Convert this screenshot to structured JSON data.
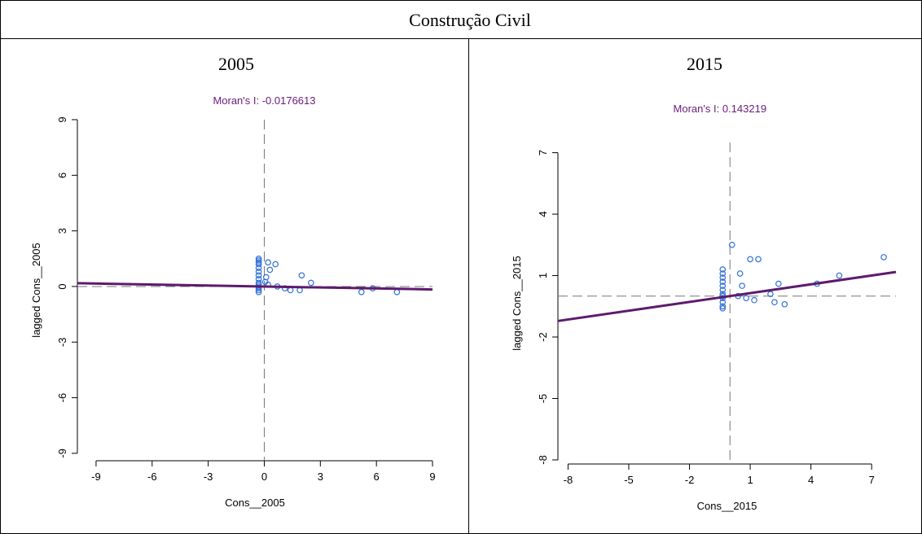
{
  "title": "Construção Civil",
  "chart_data": [
    {
      "type": "scatter",
      "heading": "2005",
      "title": "Moran's I: -0.0176613",
      "xlabel": "Cons__2005",
      "ylabel": "lagged Cons__2005",
      "xlim": [
        -10,
        9
      ],
      "ylim": [
        -9.4,
        9
      ],
      "xticks": [
        -9,
        -6,
        -3,
        0,
        3,
        6,
        9
      ],
      "yticks": [
        -9,
        -6,
        -3,
        0,
        3,
        6,
        9
      ],
      "mean_x": 0,
      "mean_y": 0,
      "regression_slope": -0.0176613,
      "color": "#2f6fd6",
      "line_color": "#5e1a6e",
      "x": [
        -0.3,
        -0.3,
        -0.3,
        -0.3,
        -0.3,
        -0.3,
        -0.3,
        -0.3,
        -0.3,
        -0.3,
        -0.3,
        -0.3,
        -0.3,
        -0.3,
        0.2,
        0.6,
        0.1,
        0.2,
        0.7,
        1.1,
        1.4,
        2,
        1.9,
        2.5,
        5.2,
        5.8,
        7.1,
        0.3,
        0.05
      ],
      "values": [
        1.5,
        1.4,
        1.3,
        1.2,
        1.0,
        0.8,
        0.6,
        0.4,
        0.2,
        0.1,
        0,
        -0.1,
        -0.2,
        -0.3,
        1.3,
        1.2,
        0.5,
        0.1,
        0,
        -0.1,
        -0.2,
        0.6,
        -0.2,
        0.2,
        -0.3,
        -0.1,
        -0.3,
        0.9,
        0.25
      ]
    },
    {
      "type": "scatter",
      "heading": "2015",
      "title": "Moran's I: 0.143219",
      "xlabel": "Cons__2015",
      "ylabel": "lagged Cons__2015",
      "xlim": [
        -8.5,
        8.2
      ],
      "ylim": [
        -8.2,
        7.5
      ],
      "xticks": [
        -8,
        -5,
        -2,
        1,
        4,
        7
      ],
      "yticks": [
        -8,
        -5,
        -2,
        1,
        4,
        7
      ],
      "mean_x": 0,
      "mean_y": 0,
      "regression_slope": 0.143219,
      "color": "#2f6fd6",
      "line_color": "#5e1a6e",
      "x": [
        -0.36,
        -0.36,
        -0.36,
        -0.36,
        -0.36,
        -0.36,
        -0.36,
        -0.36,
        -0.36,
        -0.36,
        -0.36,
        -0.36,
        0.1,
        0.5,
        0.6,
        1,
        1.4,
        2.4,
        0.8,
        1.2,
        2,
        2.2,
        2.7,
        4.3,
        5.4,
        7.6,
        0.4
      ],
      "values": [
        1.3,
        1.1,
        0.9,
        0.7,
        0.5,
        0.3,
        0.1,
        0,
        -0.1,
        -0.3,
        -0.5,
        -0.6,
        2.5,
        1.1,
        0.5,
        1.8,
        1.8,
        0.6,
        -0.1,
        -0.2,
        0.1,
        -0.3,
        -0.4,
        0.6,
        1,
        1.9,
        0
      ]
    }
  ]
}
